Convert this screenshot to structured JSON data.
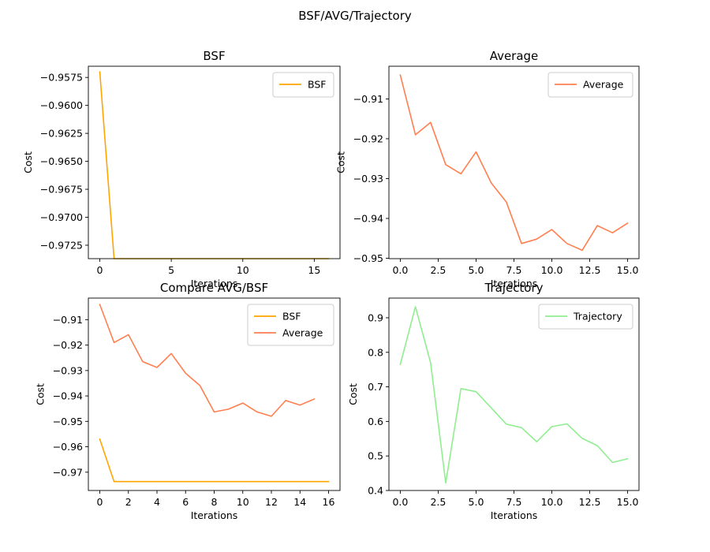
{
  "figure": {
    "suptitle": "BSF/AVG/Trajectory"
  },
  "colors": {
    "bsf": "#ffa500",
    "average": "#ff7f50",
    "trajectory": "#90ee90"
  },
  "chart_data": [
    {
      "id": "bsf",
      "type": "line",
      "title": "BSF",
      "xlabel": "Iterations",
      "ylabel": "Cost",
      "xlim": [
        -0.8,
        16.8
      ],
      "ylim": [
        -0.9737,
        -0.9565
      ],
      "xticks": [
        0,
        5,
        10,
        15
      ],
      "xtick_labels": [
        "0",
        "5",
        "10",
        "15"
      ],
      "yticks": [
        -0.9575,
        -0.96,
        -0.9625,
        -0.965,
        -0.9675,
        -0.97,
        -0.9725
      ],
      "ytick_labels": [
        "−0.9575",
        "−0.9600",
        "−0.9625",
        "−0.9650",
        "−0.9675",
        "−0.9700",
        "−0.9725"
      ],
      "legend": "top-right",
      "series": [
        {
          "name": "BSF",
          "color": "#ffa500",
          "x": [
            0,
            1,
            2,
            3,
            4,
            5,
            6,
            7,
            8,
            9,
            10,
            11,
            12,
            13,
            14,
            15,
            16
          ],
          "y": [
            -0.957,
            -0.9737,
            -0.9737,
            -0.9737,
            -0.9737,
            -0.9737,
            -0.9737,
            -0.9737,
            -0.9737,
            -0.9737,
            -0.9737,
            -0.9737,
            -0.9737,
            -0.9737,
            -0.9737,
            -0.9737,
            -0.9737
          ]
        }
      ]
    },
    {
      "id": "average",
      "type": "line",
      "title": "Average",
      "xlabel": "Iterations",
      "ylabel": "Cost",
      "xlim": [
        -0.75,
        15.75
      ],
      "ylim": [
        -0.9501,
        -0.9018
      ],
      "xticks": [
        0,
        2.5,
        5,
        7.5,
        10,
        12.5,
        15
      ],
      "xtick_labels": [
        "0.0",
        "2.5",
        "5.0",
        "7.5",
        "10.0",
        "12.5",
        "15.0"
      ],
      "yticks": [
        -0.91,
        -0.92,
        -0.93,
        -0.94,
        -0.95
      ],
      "ytick_labels": [
        "−0.91",
        "−0.92",
        "−0.93",
        "−0.94",
        "−0.95"
      ],
      "legend": "top-right",
      "series": [
        {
          "name": "Average",
          "color": "#ff7f50",
          "x": [
            0,
            1,
            2,
            3,
            4,
            5,
            6,
            7,
            8,
            9,
            10,
            11,
            12,
            13,
            14,
            15
          ],
          "y": [
            -0.904,
            -0.919,
            -0.9159,
            -0.9265,
            -0.9288,
            -0.9233,
            -0.9311,
            -0.9359,
            -0.9463,
            -0.9452,
            -0.9428,
            -0.9463,
            -0.948,
            -0.9418,
            -0.9436,
            -0.9412
          ]
        }
      ]
    },
    {
      "id": "compare",
      "type": "line",
      "title": "Compare AVG/BSF",
      "xlabel": "Iterations",
      "ylabel": "Cost",
      "xlim": [
        -0.8,
        16.8
      ],
      "ylim": [
        -0.9772,
        -0.9015
      ],
      "xticks": [
        0,
        2,
        4,
        6,
        8,
        10,
        12,
        14,
        16
      ],
      "xtick_labels": [
        "0",
        "2",
        "4",
        "6",
        "8",
        "10",
        "12",
        "14",
        "16"
      ],
      "yticks": [
        -0.91,
        -0.92,
        -0.93,
        -0.94,
        -0.95,
        -0.96,
        -0.97
      ],
      "ytick_labels": [
        "−0.91",
        "−0.92",
        "−0.93",
        "−0.94",
        "−0.95",
        "−0.96",
        "−0.97"
      ],
      "legend": "top-right",
      "series": [
        {
          "name": "BSF",
          "color": "#ffa500",
          "x": [
            0,
            1,
            2,
            3,
            4,
            5,
            6,
            7,
            8,
            9,
            10,
            11,
            12,
            13,
            14,
            15,
            16
          ],
          "y": [
            -0.957,
            -0.9737,
            -0.9737,
            -0.9737,
            -0.9737,
            -0.9737,
            -0.9737,
            -0.9737,
            -0.9737,
            -0.9737,
            -0.9737,
            -0.9737,
            -0.9737,
            -0.9737,
            -0.9737,
            -0.9737,
            -0.9737
          ]
        },
        {
          "name": "Average",
          "color": "#ff7f50",
          "x": [
            0,
            1,
            2,
            3,
            4,
            5,
            6,
            7,
            8,
            9,
            10,
            11,
            12,
            13,
            14,
            15
          ],
          "y": [
            -0.904,
            -0.919,
            -0.9159,
            -0.9265,
            -0.9288,
            -0.9233,
            -0.9311,
            -0.9359,
            -0.9463,
            -0.9452,
            -0.9428,
            -0.9463,
            -0.948,
            -0.9418,
            -0.9436,
            -0.9412
          ]
        }
      ]
    },
    {
      "id": "trajectory",
      "type": "line",
      "title": "Trajectory",
      "xlabel": "Iterations",
      "ylabel": "Cost",
      "xlim": [
        -0.75,
        15.75
      ],
      "ylim": [
        0.4,
        0.957
      ],
      "xticks": [
        0,
        2.5,
        5,
        7.5,
        10,
        12.5,
        15
      ],
      "xtick_labels": [
        "0.0",
        "2.5",
        "5.0",
        "7.5",
        "10.0",
        "12.5",
        "15.0"
      ],
      "yticks": [
        0.4,
        0.5,
        0.6,
        0.7,
        0.8,
        0.9
      ],
      "ytick_labels": [
        "0.4",
        "0.5",
        "0.6",
        "0.7",
        "0.8",
        "0.9"
      ],
      "legend": "top-right",
      "series": [
        {
          "name": "Trajectory",
          "color": "#90ee90",
          "x": [
            0,
            1,
            2,
            3,
            4,
            5,
            6,
            7,
            8,
            9,
            10,
            11,
            12,
            13,
            14,
            15
          ],
          "y": [
            0.765,
            0.932,
            0.77,
            0.422,
            0.695,
            0.686,
            0.639,
            0.592,
            0.582,
            0.541,
            0.585,
            0.593,
            0.551,
            0.53,
            0.481,
            0.492
          ]
        }
      ]
    }
  ]
}
